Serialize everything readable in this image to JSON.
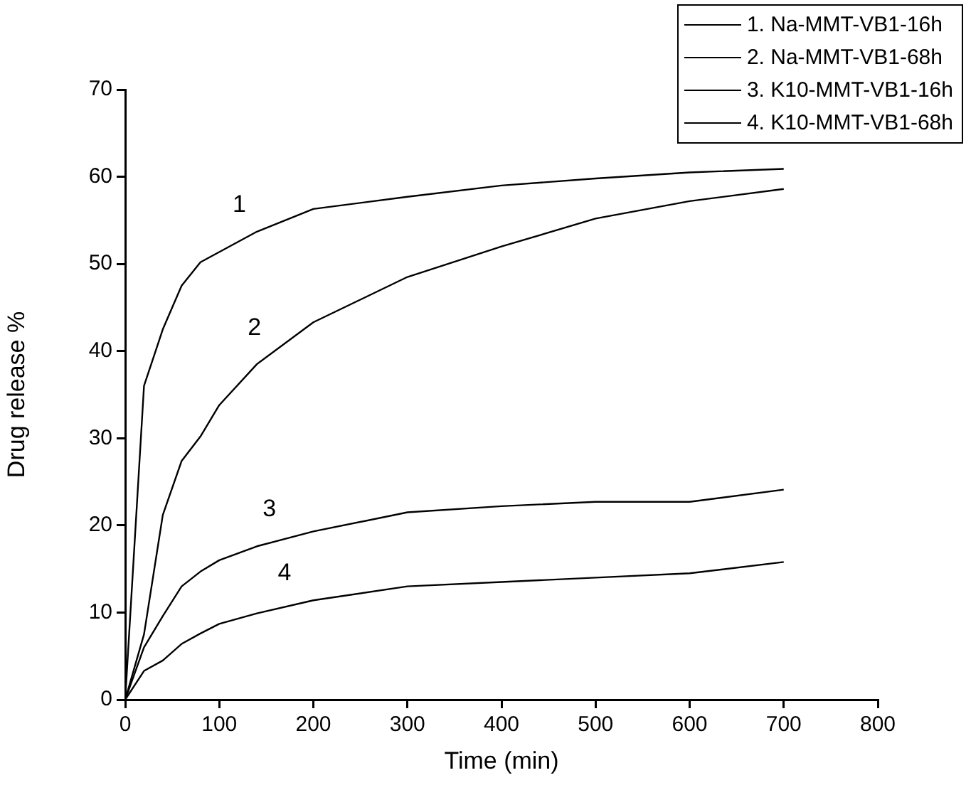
{
  "chart_data": {
    "type": "line",
    "xlabel": "Time (min)",
    "ylabel": "Drug release %",
    "xlim": [
      0,
      800
    ],
    "xticks": [
      0,
      100,
      200,
      300,
      400,
      500,
      600,
      700,
      800
    ],
    "ylim": [
      0,
      70
    ],
    "yticks": [
      0,
      10,
      20,
      30,
      40,
      50,
      60,
      70
    ],
    "grid": false,
    "legend": "top right",
    "marker": "none",
    "line_style": "solid",
    "series": [
      {
        "name": "1. Na-MMT-VB1-16h",
        "color": "#000000",
        "x": [
          0,
          20,
          40,
          60,
          80,
          140,
          200,
          300,
          400,
          500,
          600,
          700
        ],
        "values": [
          0,
          36,
          42.5,
          47.5,
          50.2,
          53.7,
          56.3,
          57.7,
          59,
          59.8,
          60.5,
          60.9
        ]
      },
      {
        "name": "2. Na-MMT-VB1-68h",
        "color": "#000000",
        "x": [
          0,
          20,
          40,
          60,
          80,
          100,
          140,
          200,
          300,
          400,
          500,
          600,
          700
        ],
        "values": [
          0,
          7.5,
          21.2,
          27.4,
          30.2,
          33.8,
          38.5,
          43.3,
          48.5,
          52,
          55.2,
          57.2,
          58.6
        ]
      },
      {
        "name": "3. K10-MMT-VB1-16h",
        "color": "#000000",
        "x": [
          0,
          20,
          40,
          60,
          80,
          100,
          140,
          200,
          300,
          400,
          500,
          600,
          700
        ],
        "values": [
          0,
          6,
          9.6,
          13,
          14.7,
          16,
          17.6,
          19.3,
          21.5,
          22.2,
          22.7,
          22.7,
          24.1
        ]
      },
      {
        "name": "4. K10-MMT-VB1-68h",
        "color": "#000000",
        "x": [
          0,
          20,
          40,
          60,
          80,
          100,
          140,
          200,
          300,
          400,
          500,
          600,
          700
        ],
        "values": [
          0,
          3.3,
          4.5,
          6.4,
          7.6,
          8.7,
          9.9,
          11.4,
          13,
          13.5,
          14,
          14.5,
          15.8
        ]
      }
    ],
    "annotations": [
      "1",
      "2",
      "3",
      "4"
    ]
  }
}
